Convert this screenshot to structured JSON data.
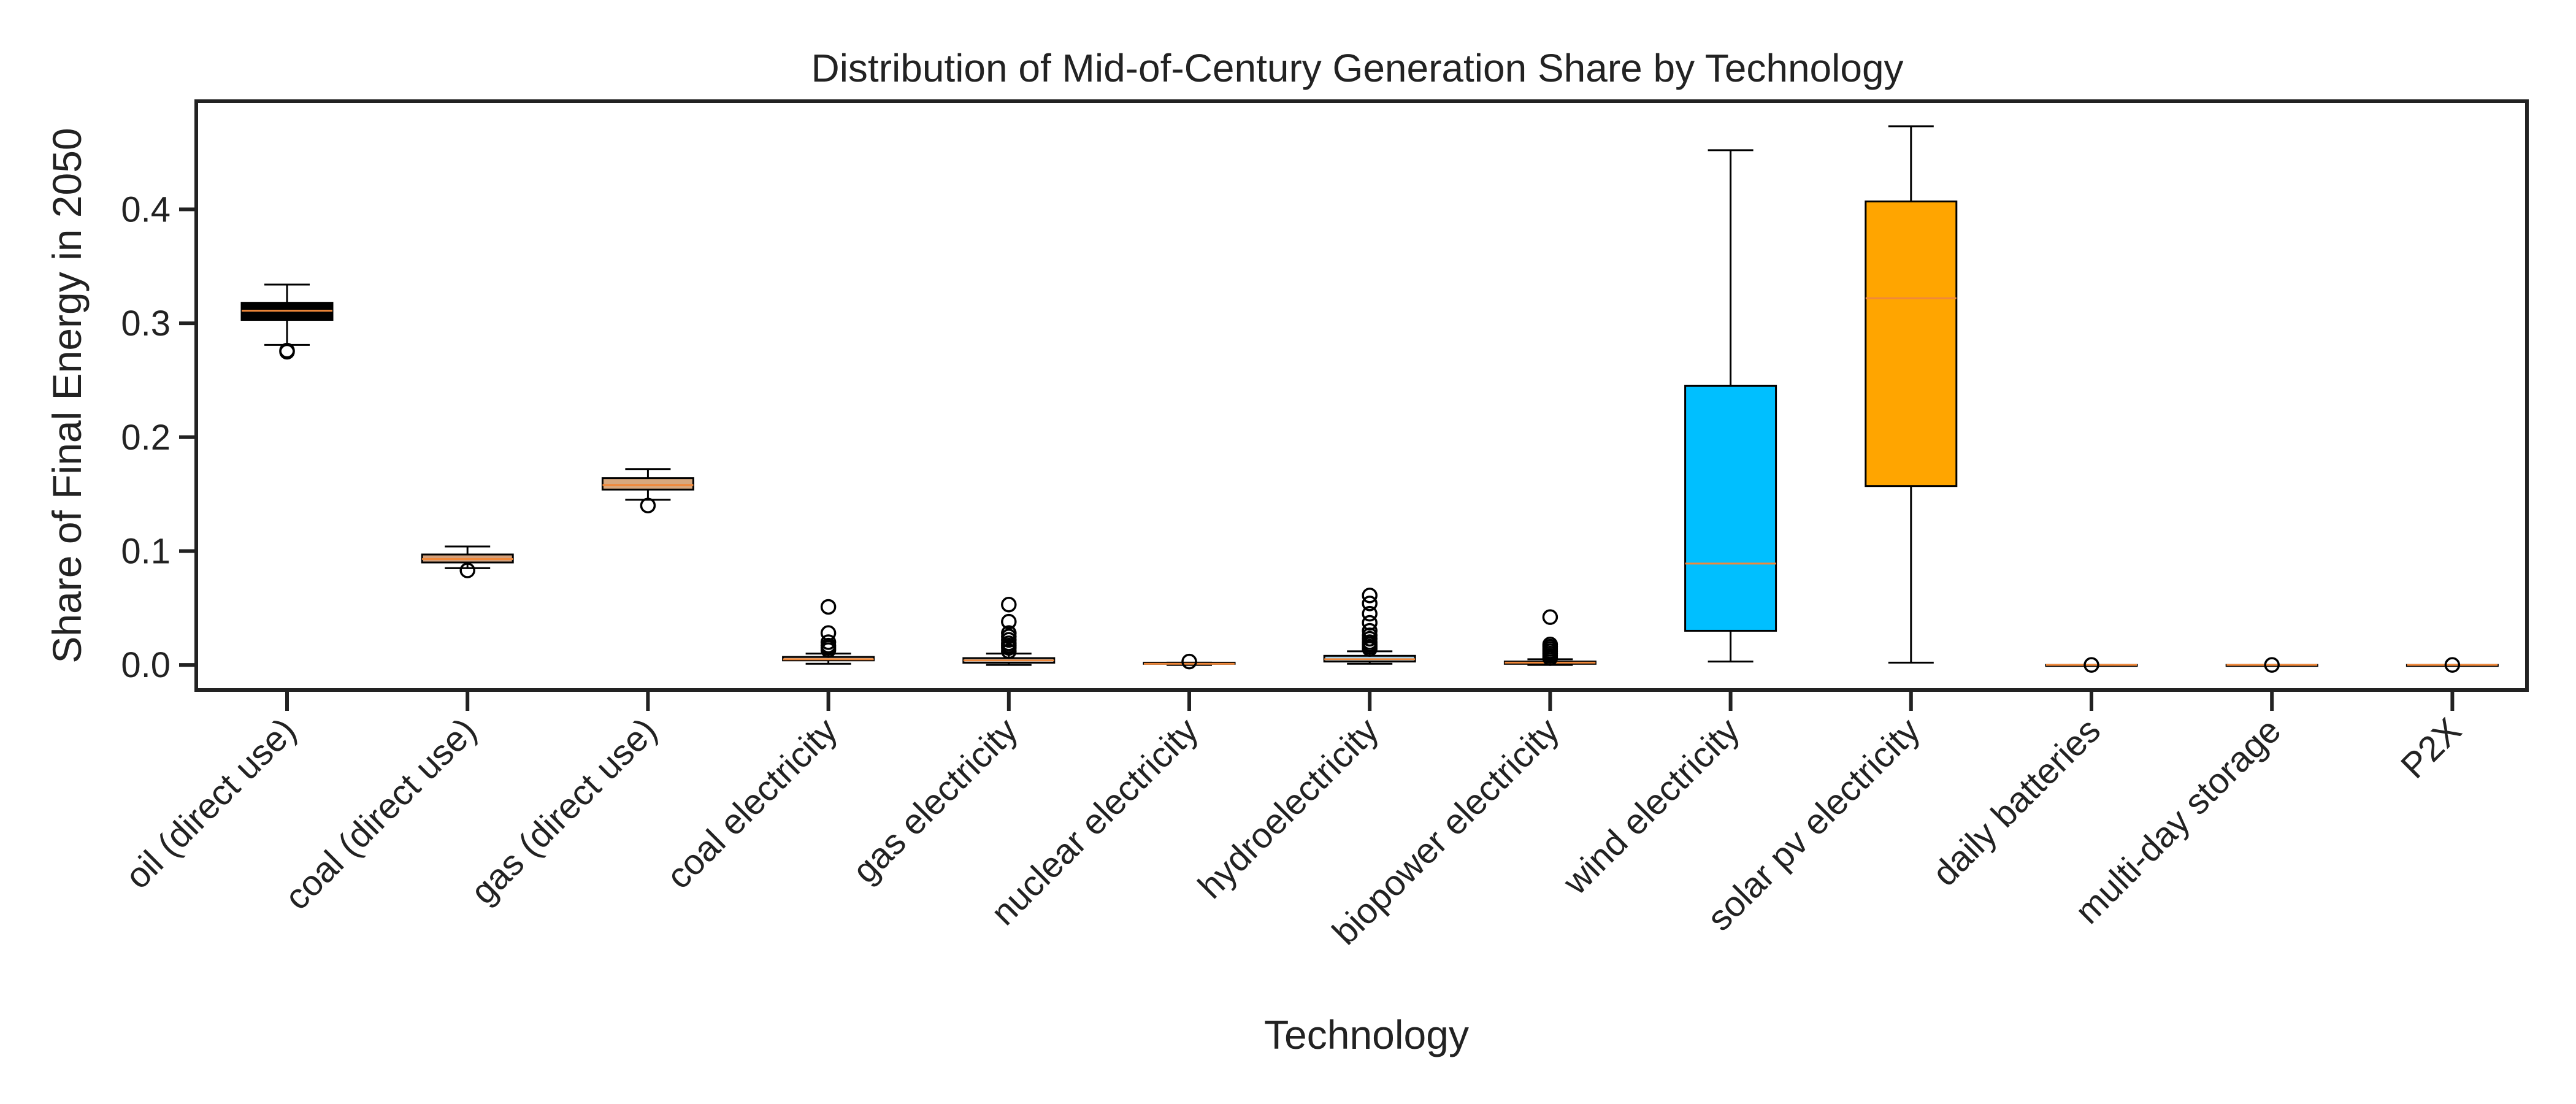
{
  "chart_data": {
    "type": "box",
    "title": "Distribution of Mid-of-Century Generation Share by Technology",
    "xlabel": "Technology",
    "ylabel": "Share of Final Energy in 2050",
    "ylim": [
      -0.022,
      0.495
    ],
    "yticks": [
      0.0,
      0.1,
      0.2,
      0.3,
      0.4
    ],
    "ytick_labels": [
      "0.0",
      "0.1",
      "0.2",
      "0.3",
      "0.4"
    ],
    "grid": false,
    "median_color": "#f0883a",
    "categories": [
      "oil (direct use)",
      "coal (direct use)",
      "gas (direct use)",
      "coal electricity",
      "gas electricity",
      "nuclear electricity",
      "hydroelectricity",
      "biopower electricity",
      "wind electricity",
      "solar pv electricity",
      "daily batteries",
      "multi-day storage",
      "P2X"
    ],
    "boxes": [
      {
        "whislo": 0.281,
        "q1": 0.303,
        "med": 0.311,
        "q3": 0.318,
        "whishi": 0.334,
        "fliers": [
          0.275,
          0.276
        ],
        "color": "#000000"
      },
      {
        "whislo": 0.085,
        "q1": 0.09,
        "med": 0.093,
        "q3": 0.097,
        "whishi": 0.104,
        "fliers": [
          0.083
        ],
        "color": "#d4a07a"
      },
      {
        "whislo": 0.145,
        "q1": 0.154,
        "med": 0.158,
        "q3": 0.164,
        "whishi": 0.172,
        "fliers": [
          0.14
        ],
        "color": "#d8a87e"
      },
      {
        "whislo": 0.001,
        "q1": 0.004,
        "med": 0.005,
        "q3": 0.007,
        "whishi": 0.01,
        "fliers": [
          0.013,
          0.015,
          0.017,
          0.02,
          0.028,
          0.051
        ],
        "color": "#d6c0b0"
      },
      {
        "whislo": 0.0,
        "q1": 0.002,
        "med": 0.004,
        "q3": 0.006,
        "whishi": 0.01,
        "fliers": [
          0.012,
          0.015,
          0.017,
          0.019,
          0.022,
          0.025,
          0.028,
          0.038,
          0.053
        ],
        "color": "#c9d2d8"
      },
      {
        "whislo": 0.0,
        "q1": 0.001,
        "med": 0.001,
        "q3": 0.002,
        "whishi": 0.002,
        "fliers": [
          0.003
        ],
        "color": "#b0b0b0"
      },
      {
        "whislo": 0.001,
        "q1": 0.003,
        "med": 0.005,
        "q3": 0.008,
        "whishi": 0.012,
        "fliers": [
          0.014,
          0.016,
          0.018,
          0.02,
          0.023,
          0.026,
          0.03,
          0.037,
          0.045,
          0.054,
          0.061
        ],
        "color": "#a8d0e6"
      },
      {
        "whislo": 0.0,
        "q1": 0.001,
        "med": 0.002,
        "q3": 0.003,
        "whishi": 0.005,
        "fliers": [
          0.006,
          0.008,
          0.01,
          0.012,
          0.014,
          0.016,
          0.018,
          0.042
        ],
        "color": "#c8b896"
      },
      {
        "whislo": 0.003,
        "q1": 0.03,
        "med": 0.089,
        "q3": 0.245,
        "whishi": 0.452,
        "fliers": [],
        "color": "#00bfff"
      },
      {
        "whislo": 0.002,
        "q1": 0.157,
        "med": 0.322,
        "q3": 0.407,
        "whishi": 0.473,
        "fliers": [],
        "color": "#ffa500"
      },
      {
        "whislo": 0.0,
        "q1": 0.0,
        "med": 0.0,
        "q3": 0.0,
        "whishi": 0.0,
        "fliers": [
          0.0
        ],
        "color": "#ffffff"
      },
      {
        "whislo": 0.0,
        "q1": 0.0,
        "med": 0.0,
        "q3": 0.0,
        "whishi": 0.0,
        "fliers": [
          0.0
        ],
        "color": "#ffffff"
      },
      {
        "whislo": 0.0,
        "q1": 0.0,
        "med": 0.0,
        "q3": 0.0,
        "whishi": 0.0,
        "fliers": [
          0.0
        ],
        "color": "#ffffff"
      }
    ]
  }
}
